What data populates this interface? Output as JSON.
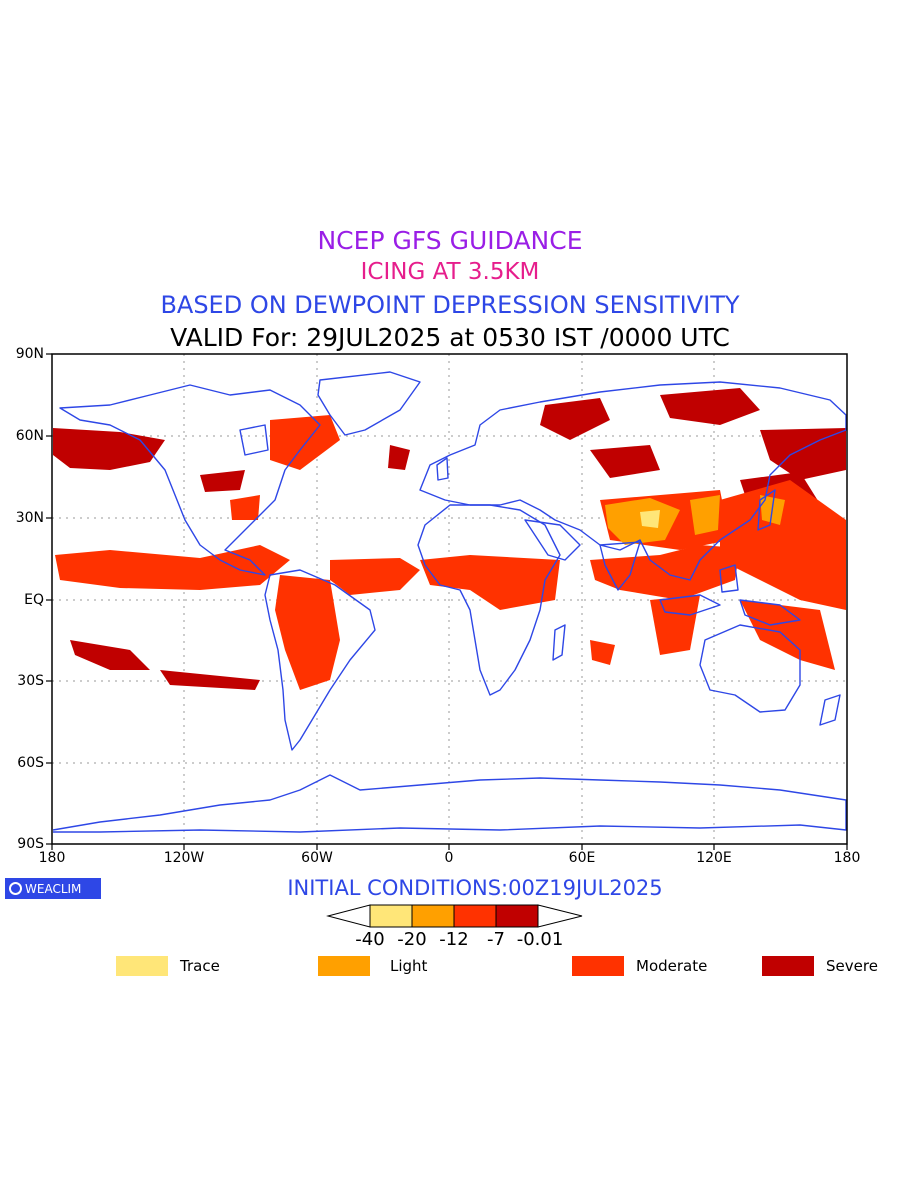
{
  "titles": {
    "line1": "NCEP GFS GUIDANCE",
    "line2": "ICING AT 3.5KM",
    "line3": "BASED ON DEWPOINT DEPRESSION SENSITIVITY",
    "line4": "VALID For: 29JUL2025 at 0530 IST /0000 UTC"
  },
  "colors": {
    "line1": "#9a1ee6",
    "line2": "#e61e8c",
    "line3": "#2e47e6",
    "line4": "#000000",
    "coast": "#2e47e6",
    "trace": "#ffe678",
    "light": "#ffa000",
    "moderate": "#ff3200",
    "severe": "#c00000"
  },
  "axes": {
    "lat_labels": [
      "90N",
      "60N",
      "30N",
      "EQ",
      "30S",
      "60S",
      "90S"
    ],
    "lon_labels": [
      "180",
      "120W",
      "60W",
      "0",
      "60E",
      "120E",
      "180"
    ]
  },
  "logo": {
    "text": "WEACLIM"
  },
  "initial_conditions": "INITIAL CONDITIONS:00Z19JUL2025",
  "colorbar": {
    "labels": [
      "-40",
      "-20",
      "-12",
      "-7",
      "-0.01"
    ]
  },
  "legend": [
    {
      "label": "Trace",
      "color": "#ffe678"
    },
    {
      "label": "Light",
      "color": "#ffa000"
    },
    {
      "label": "Moderate",
      "color": "#ff3200"
    },
    {
      "label": "Severe",
      "color": "#c00000"
    }
  ]
}
